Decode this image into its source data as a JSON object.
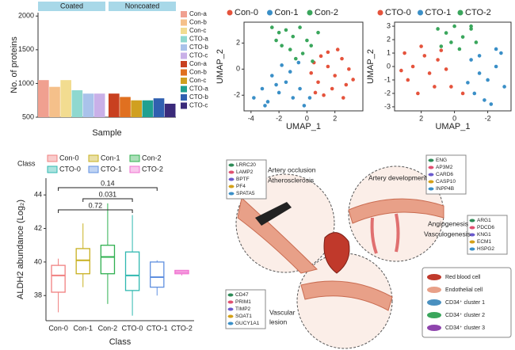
{
  "chart_data": [
    {
      "type": "bar",
      "x_label": "Sample",
      "y_label": "No. of proteins",
      "ylim": [
        500,
        2050
      ],
      "yticks": [
        500,
        1000,
        1500,
        2000
      ],
      "groups": [
        {
          "name": "Coated",
          "categories": [
            "Con-a",
            "Con-b",
            "Con-c",
            "CTO-a",
            "CTO-b",
            "CTO-c"
          ],
          "values": [
            1050,
            950,
            1050,
            900,
            850,
            850
          ],
          "colors": [
            "#f0a090",
            "#f5c08a",
            "#f2dc90",
            "#8fd8cf",
            "#a9c2ea",
            "#c9b0e8"
          ]
        },
        {
          "name": "Noncoated",
          "categories": [
            "Con-a",
            "Con-b",
            "Con-c",
            "CTO-a",
            "CTO-b",
            "CTO-c"
          ],
          "values": [
            850,
            800,
            750,
            750,
            780,
            700
          ],
          "colors": [
            "#c84020",
            "#e07020",
            "#d0a020",
            "#20a090",
            "#3060b0",
            "#3a2a7a"
          ]
        }
      ]
    },
    {
      "type": "scatter",
      "x_label": "UMAP_1",
      "y_label": "UMAP_2",
      "xlim": [
        -4.5,
        4
      ],
      "ylim": [
        -3.2,
        3.6
      ],
      "xticks": [
        -4,
        -2,
        0,
        2
      ],
      "yticks": [
        -2,
        0,
        2
      ],
      "series": [
        {
          "name": "Con-0",
          "color": "#e5533c",
          "x": [
            0.5,
            1,
            1.5,
            2,
            2.5,
            3,
            0.8,
            1.8,
            2.8,
            1.2,
            0.3,
            2.2,
            3.3,
            1.5,
            0.6,
            2.6
          ],
          "y": [
            0.5,
            1,
            0.2,
            -0.5,
            0.8,
            0,
            -1,
            -1.5,
            -1.2,
            -2,
            -0.3,
            1.5,
            -0.8,
            1.3,
            -1.8,
            -2.2
          ]
        },
        {
          "name": "Con-1",
          "color": "#3a8fc7",
          "x": [
            -3.8,
            -3.2,
            -2.8,
            -2,
            -1.5,
            -1,
            -0.5,
            -2.5,
            -1.8,
            -0.2,
            -3,
            -1.2,
            -0.6,
            0.2,
            -2.2
          ],
          "y": [
            -2.2,
            -1.5,
            -2.5,
            -1.8,
            -1,
            -2.2,
            -1.5,
            -0.5,
            0.3,
            -2.8,
            -2.8,
            -0.2,
            0.5,
            -2.2,
            -1.2
          ]
        },
        {
          "name": "Con-2",
          "color": "#3aa65c",
          "x": [
            -2.5,
            -2,
            -1.5,
            -1,
            -0.5,
            0,
            -1.8,
            -1.2,
            -0.3,
            0.3,
            -0.8,
            -2.2,
            0.4,
            0.8
          ],
          "y": [
            3.2,
            2.8,
            3,
            2.5,
            3.2,
            2.2,
            1.8,
            1.5,
            1.2,
            1.8,
            0.8,
            2.2,
            0.6,
            2.8
          ]
        }
      ]
    },
    {
      "type": "scatter",
      "x_label": "UMAP_1",
      "y_label": "UMAP_2",
      "xlim": [
        3.6,
        -3.4
      ],
      "ylim": [
        -3.3,
        3.3
      ],
      "xticks": [
        2,
        0,
        -2
      ],
      "yticks": [
        -3,
        -2,
        -1,
        0,
        1,
        2,
        3
      ],
      "series": [
        {
          "name": "CTO-0",
          "color": "#e5533c",
          "x": [
            3,
            2.5,
            2,
            1.5,
            1,
            2.8,
            2.2,
            1.2,
            0.5,
            1.8,
            0.2,
            3.2,
            0.8,
            -0.5
          ],
          "y": [
            1,
            0,
            1.5,
            -0.5,
            0.5,
            -1,
            -2,
            -1.5,
            -0.2,
            0.8,
            -1.5,
            -0.3,
            1.2,
            -2
          ]
        },
        {
          "name": "CTO-1",
          "color": "#3a8fc7",
          "x": [
            -1,
            -1.5,
            -2,
            -2.5,
            -2.8,
            -1.8,
            -1.2,
            -2.2,
            -3,
            -1.5,
            -2.5,
            -0.8
          ],
          "y": [
            0.5,
            -0.5,
            -1,
            0,
            1,
            -2.5,
            -2,
            -2.8,
            -1.5,
            0.8,
            1.3,
            -1.2
          ]
        },
        {
          "name": "CTO-2",
          "color": "#3aa65c",
          "x": [
            1,
            0.5,
            0,
            -0.5,
            -1,
            0.2,
            -0.3,
            -1.3,
            0.8,
            -1
          ],
          "y": [
            2.8,
            2.5,
            3,
            2.2,
            2.8,
            1.8,
            1.3,
            1.8,
            1.5,
            3
          ]
        }
      ]
    },
    {
      "type": "box",
      "x_label": "Class",
      "y_label": "ALDH2 abundance (Log₂)",
      "legend_title": "Class",
      "ylim": [
        36.5,
        45
      ],
      "yticks": [
        38,
        40,
        42,
        44
      ],
      "categories": [
        "Con-0",
        "Con-1",
        "Con-2",
        "CTO-0",
        "CTO-1",
        "CTO-2"
      ],
      "colors": [
        "#f08080",
        "#c8b020",
        "#30b050",
        "#30b8b0",
        "#6090e0",
        "#f070d0"
      ],
      "boxes": [
        {
          "min": 37.0,
          "q1": 38.2,
          "median": 39.2,
          "q3": 39.8,
          "max": 40.2
        },
        {
          "min": 38.5,
          "q1": 39.3,
          "median": 40.1,
          "q3": 40.8,
          "max": 42.3
        },
        {
          "min": 37.5,
          "q1": 39.3,
          "median": 40.3,
          "q3": 41.0,
          "max": 43.5
        },
        {
          "min": 36.8,
          "q1": 38.3,
          "median": 39.2,
          "q3": 40.6,
          "max": 42.8
        },
        {
          "min": 38.0,
          "q1": 38.5,
          "median": 39.1,
          "q3": 40.0,
          "max": 40.1
        },
        {
          "min": 39.2,
          "q1": 39.3,
          "median": 39.4,
          "q3": 39.5,
          "max": 39.5
        }
      ],
      "comparisons": [
        {
          "groups": [
            "Con-0",
            "CTO-1"
          ],
          "p": 0.14
        },
        {
          "groups": [
            "Con-1",
            "CTO-0"
          ],
          "p": 0.031
        },
        {
          "groups": [
            "Con-0",
            "CTO-0"
          ],
          "p": 0.72
        }
      ]
    }
  ],
  "diagram": {
    "gene_boxes": [
      [
        "LRRC20",
        "LAMP2",
        "BPTF",
        "PF4",
        "SPATA5"
      ],
      [
        "ENG",
        "AP3M2",
        "CARD6",
        "CASP10",
        "INPP4B"
      ],
      [
        "ARG1",
        "PDCD6",
        "KNG1",
        "ECM1",
        "HSPG2"
      ],
      [
        "CD47",
        "PRIM1",
        "TIMP2",
        "SOAT1",
        "GUCY1A1"
      ]
    ],
    "labels": [
      "Artery occlusion",
      "Atherosclerosis",
      "Artery development",
      "Angiogenesis",
      "Vasculogenesis",
      "Vascular",
      "lesion"
    ],
    "legend": [
      "Red blood cell",
      "Endothelial cell",
      "CD34⁺ cluster 1",
      "CD34⁺ cluster 2",
      "CD34⁺ cluster 3"
    ]
  }
}
